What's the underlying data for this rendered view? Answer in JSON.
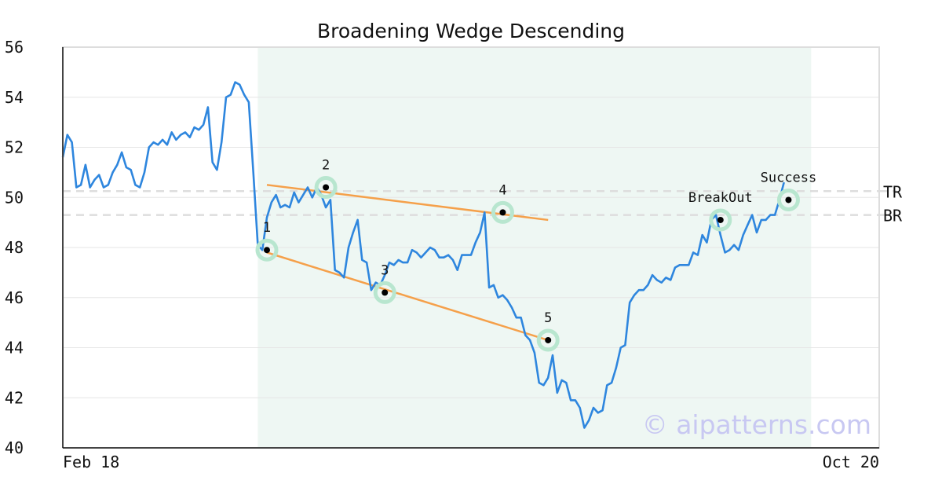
{
  "chart_data": {
    "type": "line",
    "title": "Broadening Wedge Descending",
    "ylim": [
      40,
      56
    ],
    "yticks": [
      40,
      42,
      44,
      46,
      48,
      50,
      52,
      54,
      56
    ],
    "x_range": [
      0,
      180
    ],
    "x_ticks": [
      {
        "x": 0,
        "label": "Feb 18"
      },
      {
        "x": 180,
        "label": "Oct 20"
      }
    ],
    "grid": "horizontal",
    "pattern_region": {
      "x_start": 43,
      "x_end": 165
    },
    "series": [
      {
        "color": "#2e86de",
        "values": [
          [
            0,
            51.6
          ],
          [
            1,
            52.5
          ],
          [
            2,
            52.2
          ],
          [
            3,
            50.4
          ],
          [
            4,
            50.5
          ],
          [
            5,
            51.3
          ],
          [
            6,
            50.4
          ],
          [
            7,
            50.7
          ],
          [
            8,
            50.9
          ],
          [
            9,
            50.4
          ],
          [
            10,
            50.5
          ],
          [
            11,
            51.0
          ],
          [
            12,
            51.3
          ],
          [
            13,
            51.8
          ],
          [
            14,
            51.2
          ],
          [
            15,
            51.1
          ],
          [
            16,
            50.5
          ],
          [
            17,
            50.4
          ],
          [
            18,
            51.0
          ],
          [
            19,
            52.0
          ],
          [
            20,
            52.2
          ],
          [
            21,
            52.1
          ],
          [
            22,
            52.3
          ],
          [
            23,
            52.1
          ],
          [
            24,
            52.6
          ],
          [
            25,
            52.3
          ],
          [
            26,
            52.5
          ],
          [
            27,
            52.6
          ],
          [
            28,
            52.4
          ],
          [
            29,
            52.8
          ],
          [
            30,
            52.7
          ],
          [
            31,
            52.9
          ],
          [
            32,
            53.6
          ],
          [
            33,
            51.4
          ],
          [
            34,
            51.1
          ],
          [
            35,
            52.2
          ],
          [
            36,
            54.0
          ],
          [
            37,
            54.1
          ],
          [
            38,
            54.6
          ],
          [
            39,
            54.5
          ],
          [
            40,
            54.1
          ],
          [
            41,
            53.8
          ],
          [
            42,
            51.0
          ],
          [
            43,
            48.1
          ],
          [
            44,
            47.9
          ],
          [
            45,
            49.2
          ],
          [
            46,
            49.8
          ],
          [
            47,
            50.1
          ],
          [
            48,
            49.6
          ],
          [
            49,
            49.7
          ],
          [
            50,
            49.6
          ],
          [
            51,
            50.2
          ],
          [
            52,
            49.8
          ],
          [
            53,
            50.1
          ],
          [
            54,
            50.4
          ],
          [
            55,
            50.0
          ],
          [
            56,
            50.4
          ],
          [
            57,
            50.1
          ],
          [
            58,
            49.6
          ],
          [
            59,
            49.9
          ],
          [
            60,
            47.1
          ],
          [
            61,
            47.0
          ],
          [
            62,
            46.8
          ],
          [
            63,
            48.0
          ],
          [
            64,
            48.6
          ],
          [
            65,
            49.1
          ],
          [
            66,
            47.5
          ],
          [
            67,
            47.4
          ],
          [
            68,
            46.3
          ],
          [
            69,
            46.6
          ],
          [
            70,
            46.5
          ],
          [
            71,
            46.9
          ],
          [
            72,
            47.4
          ],
          [
            73,
            47.3
          ],
          [
            74,
            47.5
          ],
          [
            75,
            47.4
          ],
          [
            76,
            47.4
          ],
          [
            77,
            47.9
          ],
          [
            78,
            47.8
          ],
          [
            79,
            47.6
          ],
          [
            80,
            47.8
          ],
          [
            81,
            48.0
          ],
          [
            82,
            47.9
          ],
          [
            83,
            47.6
          ],
          [
            84,
            47.6
          ],
          [
            85,
            47.7
          ],
          [
            86,
            47.5
          ],
          [
            87,
            47.1
          ],
          [
            88,
            47.7
          ],
          [
            89,
            47.7
          ],
          [
            90,
            47.7
          ],
          [
            91,
            48.2
          ],
          [
            92,
            48.6
          ],
          [
            93,
            49.4
          ],
          [
            94,
            46.4
          ],
          [
            95,
            46.5
          ],
          [
            96,
            46.0
          ],
          [
            97,
            46.1
          ],
          [
            98,
            45.9
          ],
          [
            99,
            45.6
          ],
          [
            100,
            45.2
          ],
          [
            101,
            45.2
          ],
          [
            102,
            44.5
          ],
          [
            103,
            44.3
          ],
          [
            104,
            43.8
          ],
          [
            105,
            42.6
          ],
          [
            106,
            42.5
          ],
          [
            107,
            42.8
          ],
          [
            108,
            43.7
          ],
          [
            109,
            42.2
          ],
          [
            110,
            42.7
          ],
          [
            111,
            42.6
          ],
          [
            112,
            41.9
          ],
          [
            113,
            41.9
          ],
          [
            114,
            41.6
          ],
          [
            115,
            40.8
          ],
          [
            116,
            41.1
          ],
          [
            117,
            41.6
          ],
          [
            118,
            41.4
          ],
          [
            119,
            41.5
          ],
          [
            120,
            42.5
          ],
          [
            121,
            42.6
          ],
          [
            122,
            43.2
          ],
          [
            123,
            44.0
          ],
          [
            124,
            44.1
          ],
          [
            125,
            45.8
          ],
          [
            126,
            46.1
          ],
          [
            127,
            46.3
          ],
          [
            128,
            46.3
          ],
          [
            129,
            46.5
          ],
          [
            130,
            46.9
          ],
          [
            131,
            46.7
          ],
          [
            132,
            46.6
          ],
          [
            133,
            46.8
          ],
          [
            134,
            46.7
          ],
          [
            135,
            47.2
          ],
          [
            136,
            47.3
          ],
          [
            137,
            47.3
          ],
          [
            138,
            47.3
          ],
          [
            139,
            47.8
          ],
          [
            140,
            47.7
          ],
          [
            141,
            48.5
          ],
          [
            142,
            48.2
          ],
          [
            143,
            49.1
          ],
          [
            144,
            49.3
          ],
          [
            145,
            48.5
          ],
          [
            146,
            47.8
          ],
          [
            147,
            47.9
          ],
          [
            148,
            48.1
          ],
          [
            149,
            47.9
          ],
          [
            150,
            48.5
          ],
          [
            151,
            48.9
          ],
          [
            152,
            49.3
          ],
          [
            153,
            48.6
          ],
          [
            154,
            49.1
          ],
          [
            155,
            49.1
          ],
          [
            156,
            49.3
          ],
          [
            157,
            49.3
          ],
          [
            158,
            49.9
          ],
          [
            159,
            50.6
          ]
        ]
      }
    ],
    "trendlines": [
      {
        "color": "#f5a04a",
        "from": [
          45,
          50.5
        ],
        "to": [
          107,
          49.1
        ]
      },
      {
        "color": "#f5a04a",
        "from": [
          45,
          47.8
        ],
        "to": [
          107,
          44.3
        ]
      }
    ],
    "levels": [
      {
        "label": "TR",
        "y": 50.25
      },
      {
        "label": "BR",
        "y": 49.3
      }
    ],
    "points": [
      {
        "label": "1",
        "x": 45,
        "y": 47.9
      },
      {
        "label": "2",
        "x": 58,
        "y": 50.4
      },
      {
        "label": "3",
        "x": 71,
        "y": 46.2
      },
      {
        "label": "4",
        "x": 97,
        "y": 49.4
      },
      {
        "label": "5",
        "x": 107,
        "y": 44.3
      },
      {
        "label": "BreakOut",
        "x": 145,
        "y": 49.1
      },
      {
        "label": "Success",
        "x": 160,
        "y": 49.9
      }
    ],
    "watermark": "© aipatterns.com"
  }
}
